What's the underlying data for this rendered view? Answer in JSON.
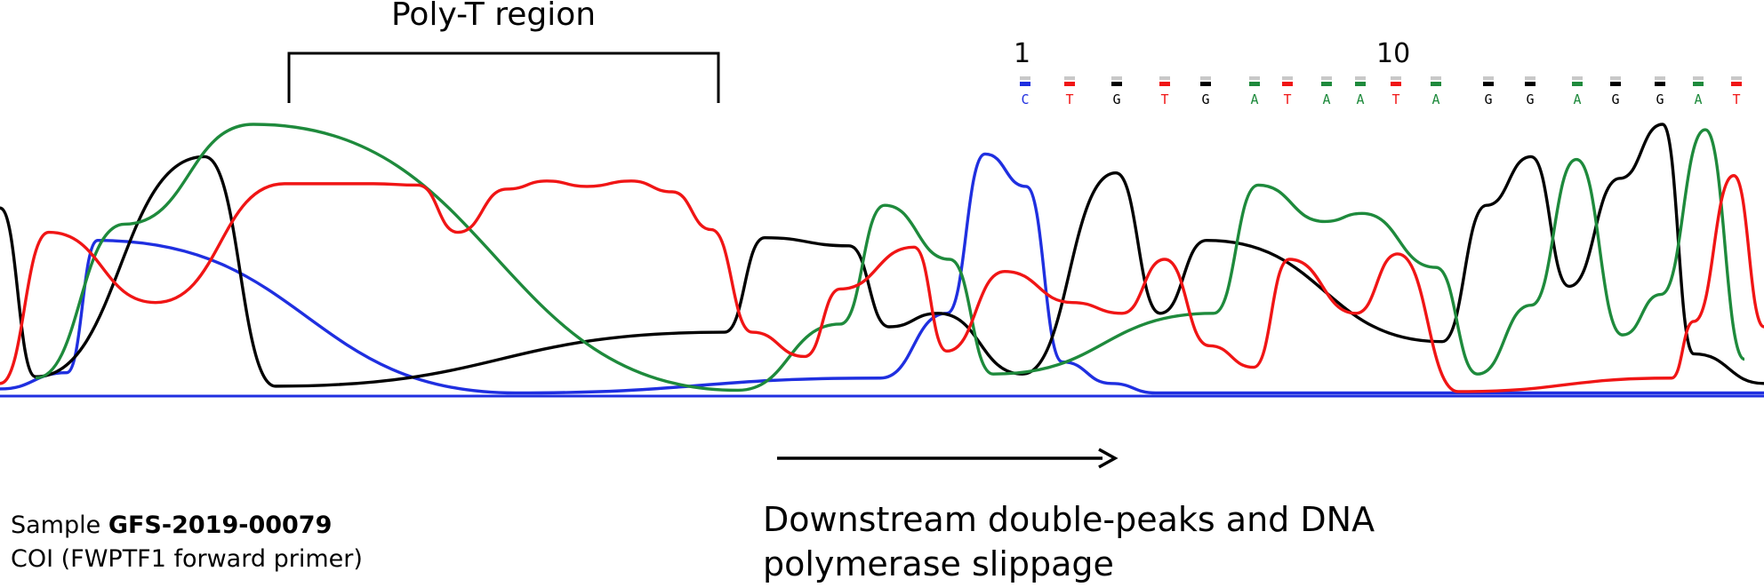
{
  "annotations": {
    "poly_t": "Poly-T region",
    "caption_line1": "Downstream double-peaks and DNA",
    "caption_line2": "polymerase slippage",
    "sample_prefix": "Sample ",
    "sample_id": "GFS-2019-00079",
    "sample_line2": "COI (FWPTF1 forward primer)"
  },
  "chart_data": {
    "type": "line",
    "title": "",
    "xlabel": "",
    "ylabel": "",
    "grid": false,
    "legend": "none",
    "colors": {
      "A": "#1e8a3c",
      "C": "#1f2fe0",
      "G": "#000000",
      "T": "#f01515"
    },
    "position_labels": [
      "1",
      "10"
    ],
    "base_calls": [
      "C",
      "T",
      "G",
      "T",
      "G",
      "A",
      "T",
      "A",
      "A",
      "T",
      "A",
      "G",
      "G",
      "A",
      "G",
      "G",
      "A",
      "T"
    ],
    "baseline_range": [
      0,
      1000
    ],
    "traces": {
      "G": [
        [
          0,
          690
        ],
        [
          40,
          65
        ],
        [
          230,
          880
        ],
        [
          310,
          30
        ],
        [
          815,
          230
        ],
        [
          860,
          580
        ],
        [
          955,
          550
        ],
        [
          1000,
          250
        ],
        [
          1055,
          300
        ],
        [
          1150,
          75
        ],
        [
          1255,
          820
        ],
        [
          1305,
          300
        ],
        [
          1357,
          570
        ],
        [
          1622,
          195
        ],
        [
          1672,
          700
        ],
        [
          1722,
          880
        ],
        [
          1765,
          400
        ],
        [
          1822,
          800
        ],
        [
          1870,
          1000
        ],
        [
          1905,
          150
        ],
        [
          1984,
          40
        ]
      ],
      "A": [
        [
          40,
          60
        ],
        [
          140,
          630
        ],
        [
          285,
          1000
        ],
        [
          830,
          15
        ],
        [
          945,
          260
        ],
        [
          995,
          700
        ],
        [
          1068,
          500
        ],
        [
          1117,
          75
        ],
        [
          1365,
          300
        ],
        [
          1415,
          775
        ],
        [
          1490,
          640
        ],
        [
          1532,
          670
        ],
        [
          1615,
          470
        ],
        [
          1662,
          75
        ],
        [
          1722,
          330
        ],
        [
          1773,
          870
        ],
        [
          1825,
          220
        ],
        [
          1868,
          370
        ],
        [
          1918,
          980
        ],
        [
          1962,
          130
        ]
      ],
      "T": [
        [
          0,
          40
        ],
        [
          55,
          600
        ],
        [
          175,
          340
        ],
        [
          320,
          780
        ],
        [
          420,
          780
        ],
        [
          470,
          775
        ],
        [
          515,
          600
        ],
        [
          570,
          760
        ],
        [
          615,
          790
        ],
        [
          660,
          770
        ],
        [
          710,
          790
        ],
        [
          756,
          750
        ],
        [
          800,
          610
        ],
        [
          846,
          230
        ],
        [
          905,
          140
        ],
        [
          945,
          390
        ],
        [
          1028,
          545
        ],
        [
          1065,
          160
        ],
        [
          1130,
          455
        ],
        [
          1206,
          340
        ],
        [
          1262,
          300
        ],
        [
          1310,
          500
        ],
        [
          1360,
          180
        ],
        [
          1410,
          100
        ],
        [
          1450,
          500
        ],
        [
          1525,
          300
        ],
        [
          1572,
          520
        ],
        [
          1640,
          10
        ],
        [
          1880,
          60
        ],
        [
          1905,
          270
        ],
        [
          1950,
          810
        ],
        [
          1984,
          250
        ]
      ],
      "C": [
        [
          0,
          20
        ],
        [
          75,
          80
        ],
        [
          110,
          570
        ],
        [
          580,
          5
        ],
        [
          990,
          60
        ],
        [
          1065,
          300
        ],
        [
          1108,
          890
        ],
        [
          1154,
          770
        ],
        [
          1195,
          120
        ],
        [
          1250,
          40
        ],
        [
          1300,
          5
        ],
        [
          1984,
          5
        ]
      ]
    }
  }
}
